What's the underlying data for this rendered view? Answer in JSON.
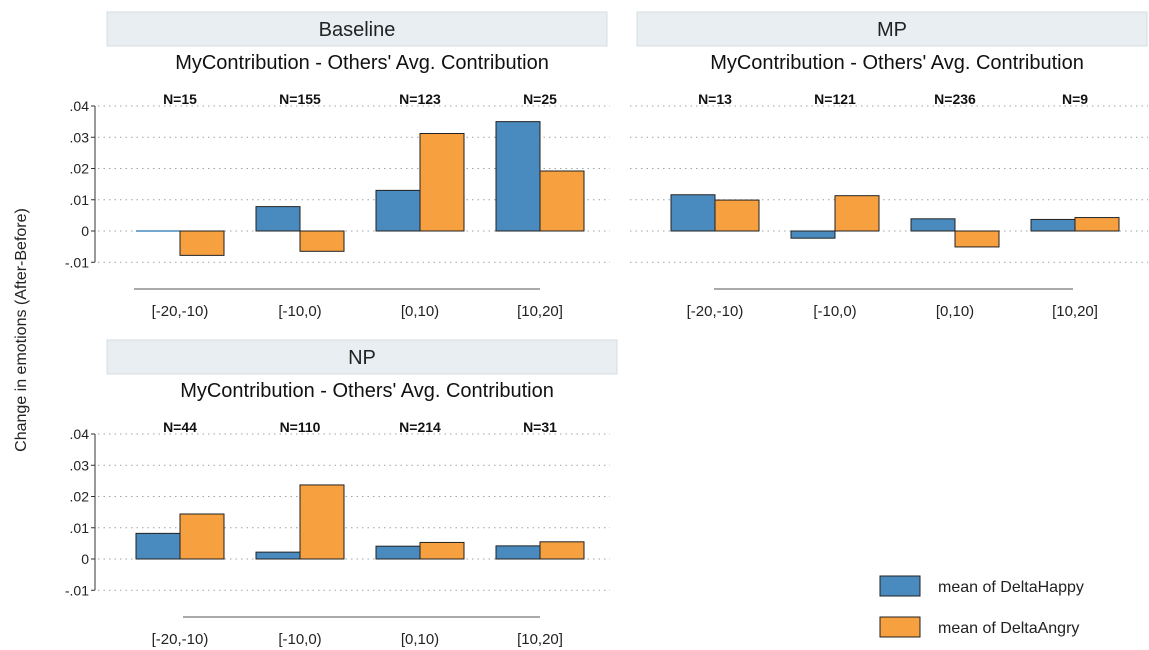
{
  "y_axis_title": "Change in emotions (After-Before)",
  "legend": [
    {
      "label": "mean of DeltaHappy",
      "color": "#4a8bbf"
    },
    {
      "label": "mean of DeltaAngry",
      "color": "#f7a040"
    }
  ],
  "chart_data": [
    {
      "type": "bar",
      "title": "Baseline",
      "subtitle": "MyContribution - Others' Avg. Contribution",
      "categories": [
        "[-20,-10)",
        "[-10,0)",
        "[0,10)",
        "[10,20]"
      ],
      "n_labels": [
        "N=15",
        "N=155",
        "N=123",
        "N=25"
      ],
      "series": [
        {
          "name": "mean of DeltaHappy",
          "values": [
            0.0,
            0.0078,
            0.013,
            0.035
          ]
        },
        {
          "name": "mean of DeltaAngry",
          "values": [
            -0.0078,
            -0.0065,
            0.0312,
            0.0192
          ]
        }
      ],
      "ylabel": "Change in emotions (After-Before)",
      "yticks": [
        ".04",
        ".03",
        ".02",
        ".01",
        "0",
        "-.01"
      ],
      "ylim": [
        -0.01,
        0.04
      ],
      "grid": true
    },
    {
      "type": "bar",
      "title": "MP",
      "subtitle": "MyContribution - Others' Avg. Contribution",
      "categories": [
        "[-20,-10)",
        "[-10,0)",
        "[0,10)",
        "[10,20]"
      ],
      "n_labels": [
        "N=13",
        "N=121",
        "N=236",
        "N=9"
      ],
      "series": [
        {
          "name": "mean of DeltaHappy",
          "values": [
            0.0116,
            -0.0023,
            0.0039,
            0.0037
          ]
        },
        {
          "name": "mean of DeltaAngry",
          "values": [
            0.0099,
            0.0113,
            -0.0051,
            0.0043
          ]
        }
      ],
      "ylim": [
        -0.01,
        0.04
      ],
      "grid": true
    },
    {
      "type": "bar",
      "title": "NP",
      "subtitle": "MyContribution - Others' Avg. Contribution",
      "categories": [
        "[-20,-10)",
        "[-10,0)",
        "[0,10)",
        "[10,20]"
      ],
      "n_labels": [
        "N=44",
        "N=110",
        "N=214",
        "N=31"
      ],
      "series": [
        {
          "name": "mean of DeltaHappy",
          "values": [
            0.0082,
            0.0022,
            0.0041,
            0.0042
          ]
        },
        {
          "name": "mean of DeltaAngry",
          "values": [
            0.0144,
            0.0237,
            0.0053,
            0.0055
          ]
        }
      ],
      "ylabel": "Change in emotions (After-Before)",
      "yticks": [
        ".04",
        ".03",
        ".02",
        ".01",
        "0",
        "-.01"
      ],
      "ylim": [
        -0.01,
        0.04
      ],
      "grid": true
    }
  ]
}
